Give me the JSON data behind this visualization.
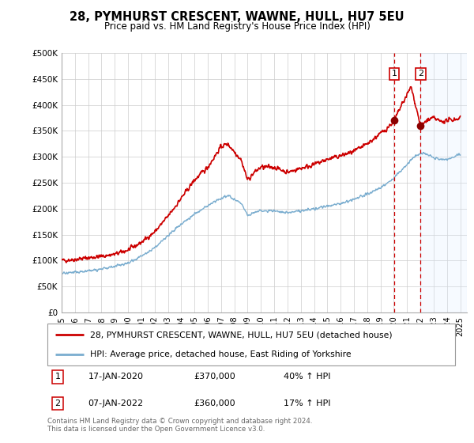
{
  "title": "28, PYMHURST CRESCENT, WAWNE, HULL, HU7 5EU",
  "subtitle": "Price paid vs. HM Land Registry's House Price Index (HPI)",
  "ylim": [
    0,
    500000
  ],
  "yticks": [
    0,
    50000,
    100000,
    150000,
    200000,
    250000,
    300000,
    350000,
    400000,
    450000,
    500000
  ],
  "ytick_labels": [
    "£0",
    "£50K",
    "£100K",
    "£150K",
    "£200K",
    "£250K",
    "£300K",
    "£350K",
    "£400K",
    "£450K",
    "£500K"
  ],
  "xlim_start": 1995.0,
  "xlim_end": 2025.5,
  "xtick_years": [
    1995,
    1996,
    1997,
    1998,
    1999,
    2000,
    2001,
    2002,
    2003,
    2004,
    2005,
    2006,
    2007,
    2008,
    2009,
    2010,
    2011,
    2012,
    2013,
    2014,
    2015,
    2016,
    2017,
    2018,
    2019,
    2020,
    2021,
    2022,
    2023,
    2024,
    2025
  ],
  "red_line_color": "#cc0000",
  "blue_line_color": "#7aadcf",
  "marker1_x": 2020.04,
  "marker1_y": 370000,
  "marker2_x": 2022.02,
  "marker2_y": 360000,
  "marker1_label": "1",
  "marker2_label": "2",
  "purchase_marker_color": "#8b0000",
  "dashed_line_color": "#cc0000",
  "legend_label_red": "28, PYMHURST CRESCENT, WAWNE, HULL, HU7 5EU (detached house)",
  "legend_label_blue": "HPI: Average price, detached house, East Riding of Yorkshire",
  "table_row1": [
    "1",
    "17-JAN-2020",
    "£370,000",
    "40% ↑ HPI"
  ],
  "table_row2": [
    "2",
    "07-JAN-2022",
    "£360,000",
    "17% ↑ HPI"
  ],
  "footnote": "Contains HM Land Registry data © Crown copyright and database right 2024.\nThis data is licensed under the Open Government Licence v3.0.",
  "background_color": "#ffffff",
  "plot_bg_color": "#ffffff",
  "grid_color": "#cccccc",
  "shaded_region_color": "#ddeeff"
}
